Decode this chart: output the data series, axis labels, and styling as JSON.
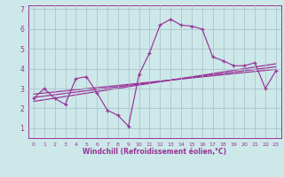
{
  "xlabel": "Windchill (Refroidissement éolien,°C)",
  "bg_color": "#cce8e8",
  "grid_color": "#aabbcc",
  "line_color": "#993399",
  "spine_color": "#993399",
  "xlim": [
    -0.5,
    23.5
  ],
  "ylim": [
    0.5,
    7.2
  ],
  "xticks": [
    0,
    1,
    2,
    3,
    4,
    5,
    6,
    7,
    8,
    9,
    10,
    11,
    12,
    13,
    14,
    15,
    16,
    17,
    18,
    19,
    20,
    21,
    22,
    23
  ],
  "yticks": [
    1,
    2,
    3,
    4,
    5,
    6,
    7
  ],
  "data_x": [
    0,
    1,
    2,
    3,
    4,
    5,
    6,
    7,
    8,
    9,
    10,
    11,
    12,
    13,
    14,
    15,
    16,
    17,
    18,
    19,
    20,
    21,
    22,
    23
  ],
  "data_y": [
    2.5,
    3.0,
    2.5,
    2.2,
    3.5,
    3.6,
    2.8,
    1.9,
    1.65,
    1.1,
    3.7,
    4.8,
    6.2,
    6.5,
    6.2,
    6.15,
    6.0,
    4.6,
    4.4,
    4.15,
    4.15,
    4.3,
    3.0,
    3.9
  ],
  "reg_lines": [
    {
      "x": [
        0,
        23
      ],
      "y": [
        2.35,
        4.25
      ]
    },
    {
      "x": [
        0,
        23
      ],
      "y": [
        2.55,
        4.1
      ]
    },
    {
      "x": [
        0,
        23
      ],
      "y": [
        2.72,
        3.97
      ]
    }
  ],
  "xlabel_fontsize": 5.5,
  "tick_fontsize_x": 4.5,
  "tick_fontsize_y": 5.5,
  "xlabel_fontweight": "bold"
}
